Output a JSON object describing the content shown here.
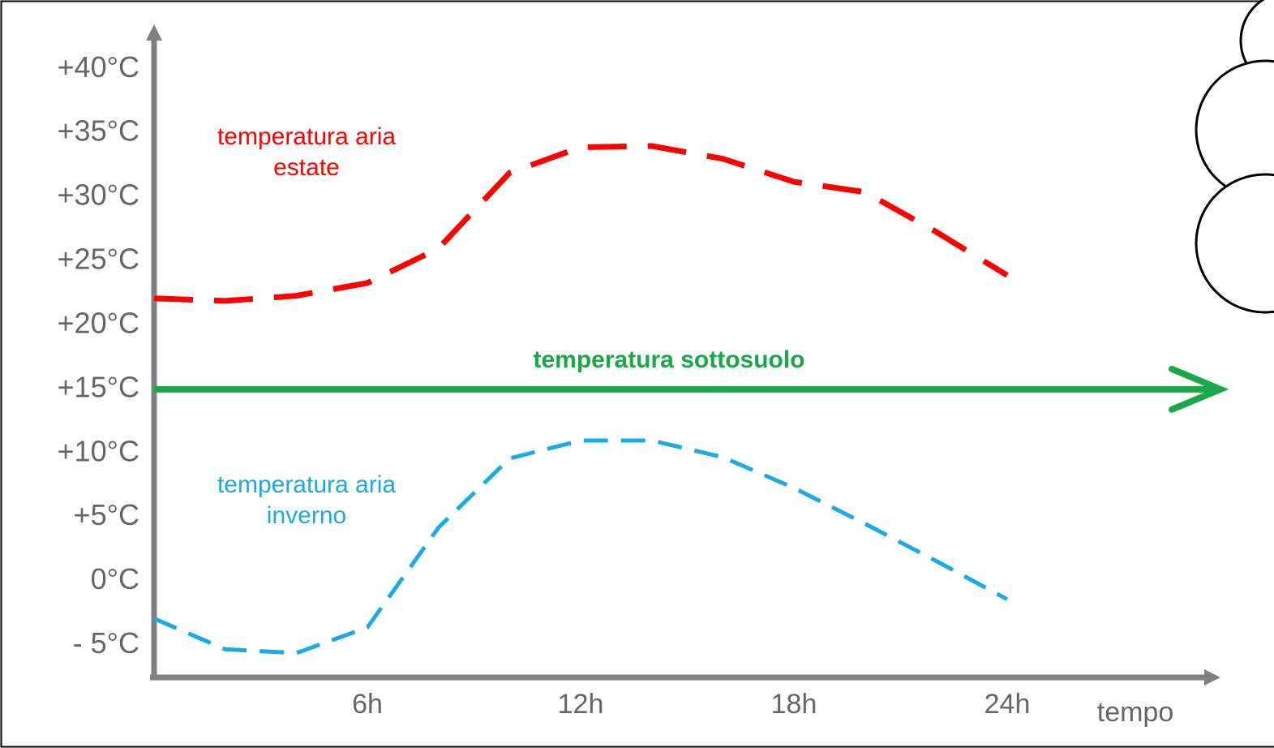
{
  "chart_data": {
    "type": "line",
    "x_label": "tempo",
    "xlim": [
      0,
      30
    ],
    "xticks": [
      {
        "value": 6,
        "label": "6h"
      },
      {
        "value": 12,
        "label": "12h"
      },
      {
        "value": 18,
        "label": "18h"
      },
      {
        "value": 24,
        "label": "24h"
      }
    ],
    "ylim": [
      -7.5,
      43.5
    ],
    "yticks": [
      {
        "value": -5,
        "label": "- 5°C"
      },
      {
        "value": 0,
        "label": "0°C"
      },
      {
        "value": 5,
        "label": "+5°C"
      },
      {
        "value": 10,
        "label": "+10°C"
      },
      {
        "value": 15,
        "label": "+15°C"
      },
      {
        "value": 20,
        "label": "+20°C"
      },
      {
        "value": 25,
        "label": "+25°C"
      },
      {
        "value": 30,
        "label": "+30°C"
      },
      {
        "value": 35,
        "label": "+35°C"
      },
      {
        "value": 40,
        "label": "+40°C"
      }
    ],
    "grid": false,
    "series": [
      {
        "name": "temperatura aria estate",
        "color": "#ff0000",
        "style": "dashed",
        "x": [
          0,
          2,
          4,
          6,
          8,
          10,
          12,
          14,
          16,
          18,
          20,
          22,
          24
        ],
        "values": [
          22.1,
          21.9,
          22.3,
          23.3,
          26.0,
          31.9,
          33.9,
          34.0,
          33.0,
          31.2,
          30.4,
          27.3,
          23.9
        ]
      },
      {
        "name": "temperatura sottosuolo",
        "color": "#1aa84a",
        "style": "arrow",
        "x": [
          0,
          30
        ],
        "values": [
          15,
          15
        ]
      },
      {
        "name": "temperatura aria inverno",
        "color": "#1aabe6",
        "style": "dashed",
        "x": [
          0,
          2,
          4,
          6,
          8,
          10,
          12,
          14,
          16,
          18,
          20,
          22,
          24
        ],
        "values": [
          -2.9,
          -5.3,
          -5.6,
          -3.6,
          4.2,
          9.6,
          11.0,
          11.0,
          9.7,
          7.3,
          4.5,
          1.6,
          -1.4
        ]
      }
    ]
  }
}
